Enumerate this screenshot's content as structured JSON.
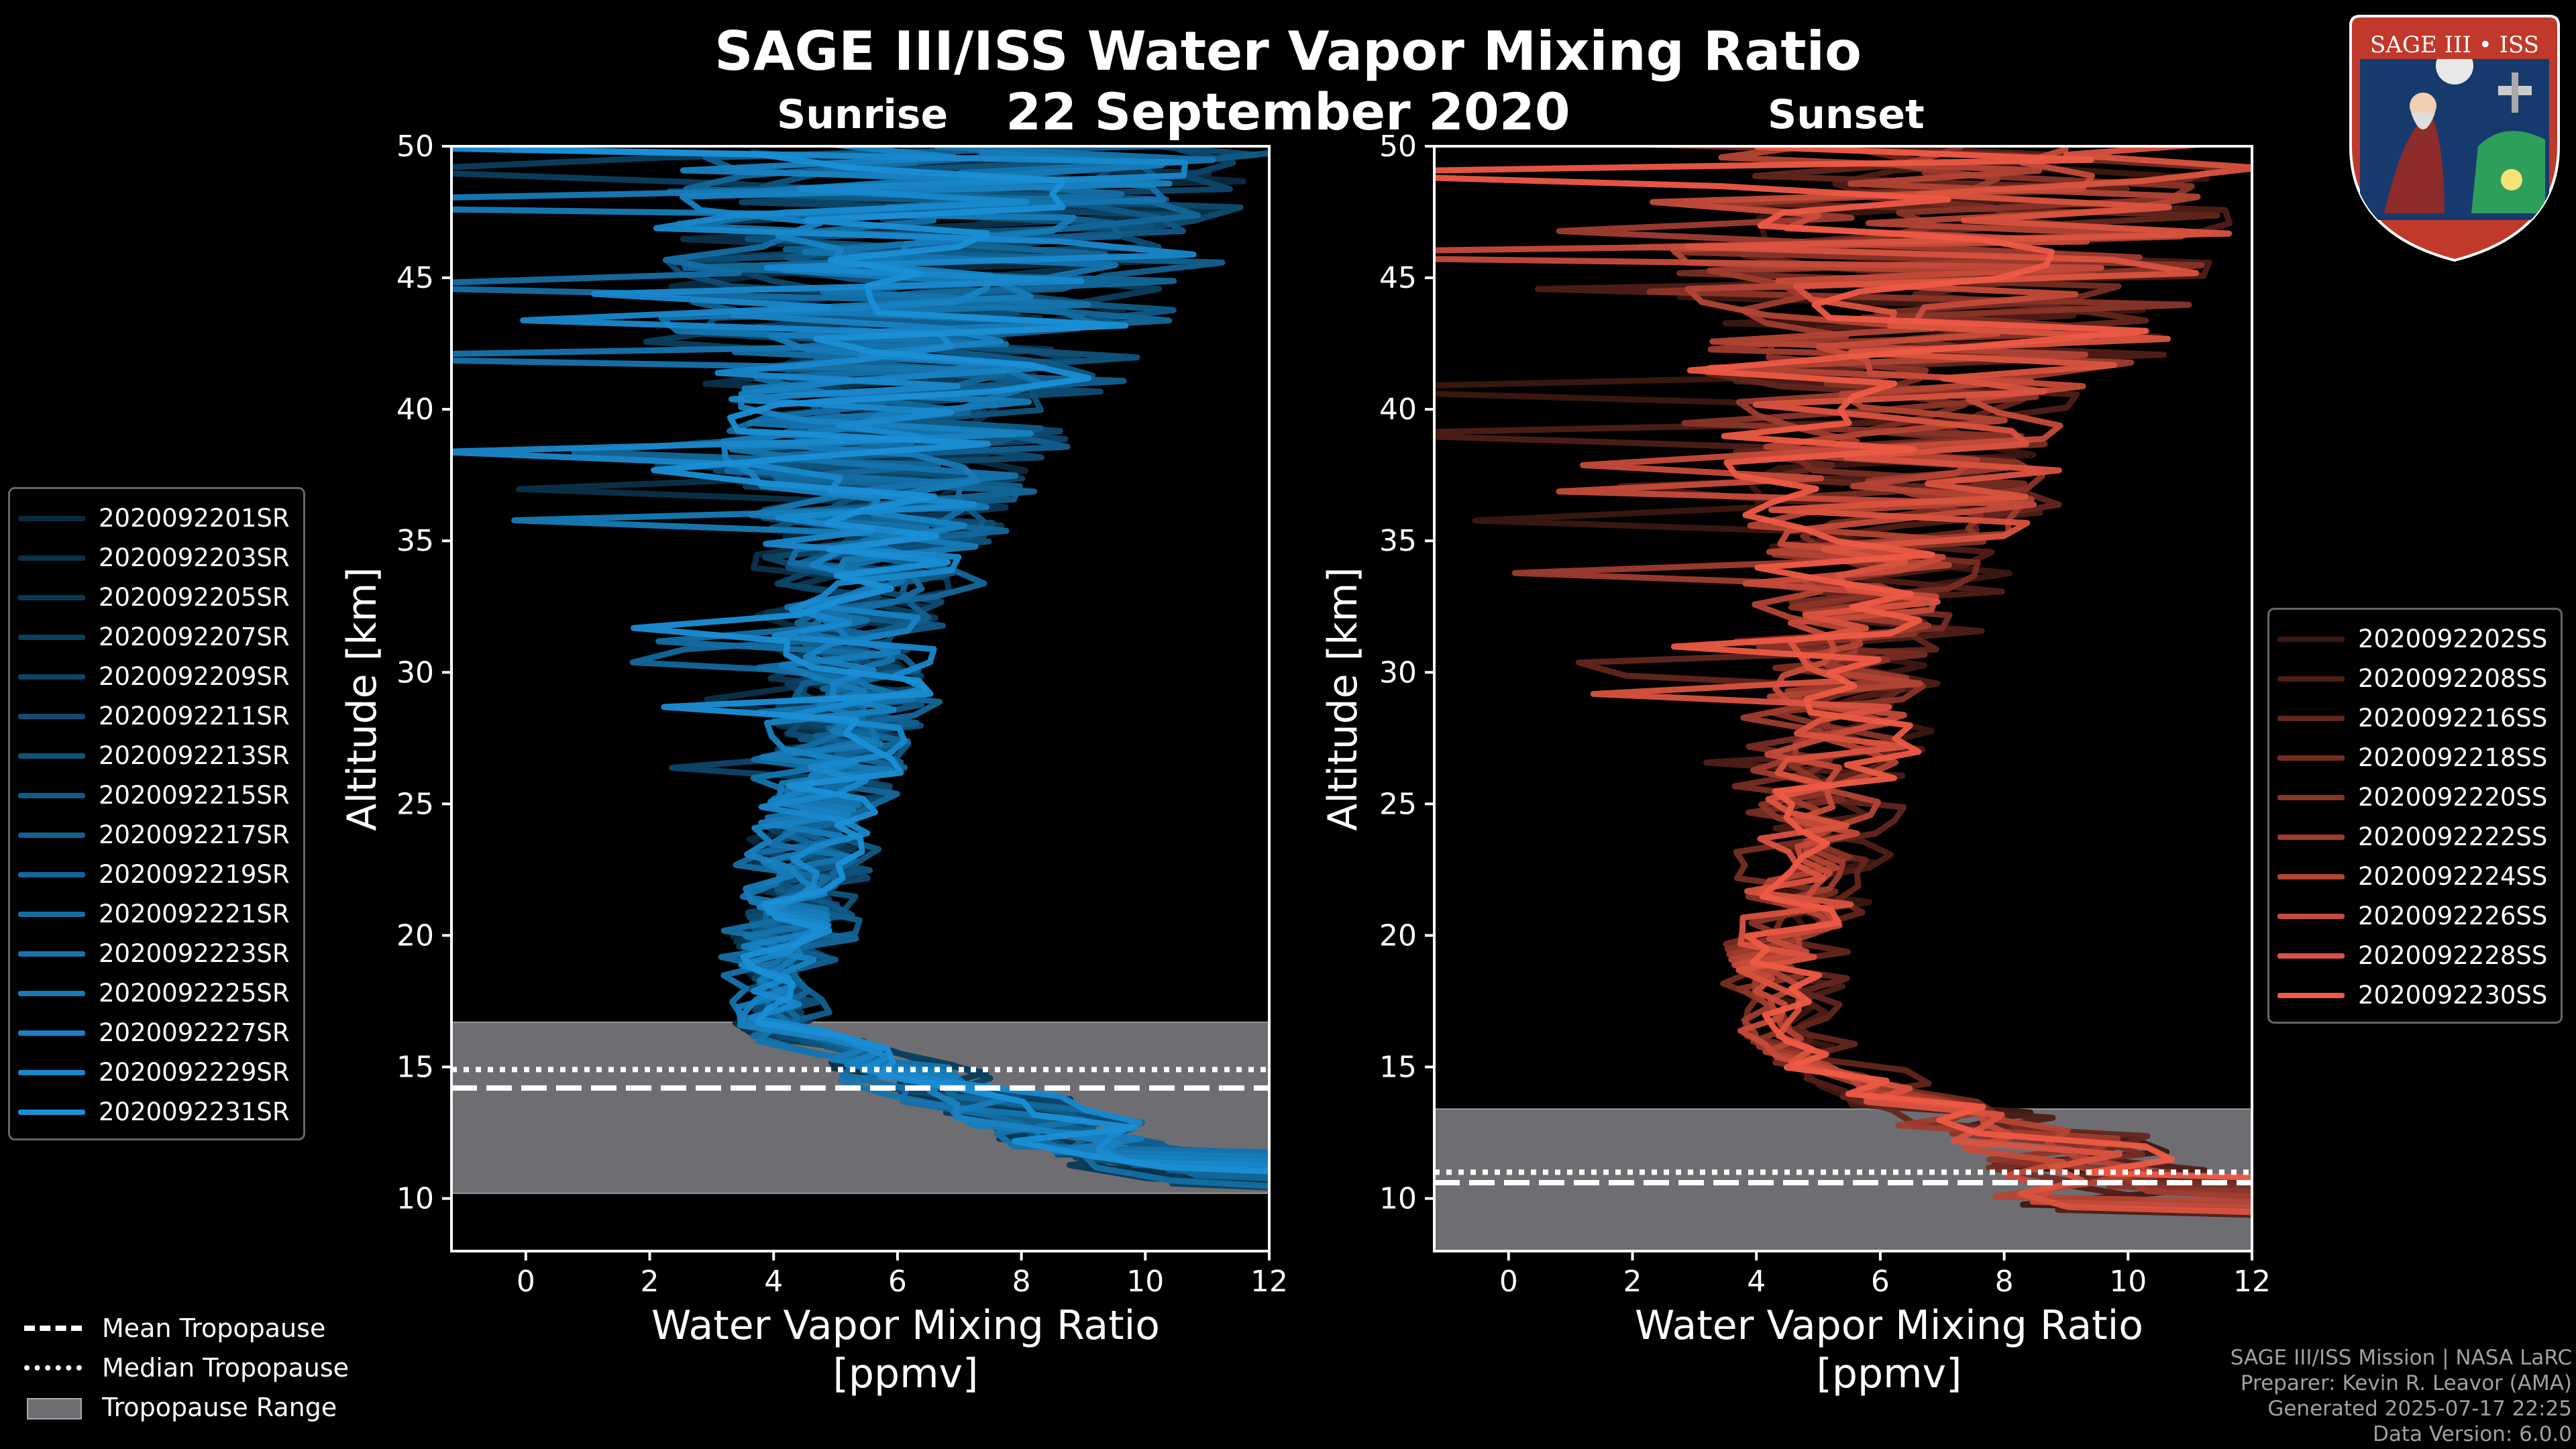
{
  "title_line1": "SAGE III/ISS Water Vapor Mixing Ratio",
  "title_line2": "22 September 2020",
  "sunrise_label": "Sunrise",
  "sunset_label": "Sunset",
  "logo_text": "SAGE III • ISS",
  "colors": {
    "sunrise": "#1a8fd6",
    "sunset": "#ee5a45",
    "tropopause_range": "#6e6e72"
  },
  "legend_tropopause": [
    {
      "label": "Mean Tropopause",
      "style": "dashed"
    },
    {
      "label": "Median Tropopause",
      "style": "dotted"
    },
    {
      "label": "Tropopause Range",
      "style": "box"
    }
  ],
  "credits": [
    "SAGE III/ISS Mission | NASA LaRC",
    "Preparer: Kevin R. Leavor (AMA)",
    "Generated 2025-07-17 22:25",
    "Data Version: 6.0.0"
  ],
  "chart_data": [
    {
      "type": "line",
      "panel": "Sunrise",
      "xlabel": "Water Vapor Mixing Ratio\n[ppmv]",
      "ylabel": "Altitude [km]",
      "xlim": [
        -1.2,
        12
      ],
      "ylim": [
        8,
        50
      ],
      "xticks": [
        0,
        2,
        4,
        6,
        8,
        10,
        12
      ],
      "yticks": [
        10,
        15,
        20,
        25,
        30,
        35,
        40,
        45,
        50
      ],
      "tropopause": {
        "mean": 14.2,
        "median": 14.9,
        "range": [
          10.2,
          16.7
        ]
      },
      "series": [
        {
          "name": "2020092201SR",
          "values": []
        },
        {
          "name": "2020092203SR",
          "values": []
        },
        {
          "name": "2020092205SR",
          "values": []
        },
        {
          "name": "2020092207SR",
          "values": []
        },
        {
          "name": "2020092209SR",
          "values": []
        },
        {
          "name": "2020092211SR",
          "values": []
        },
        {
          "name": "2020092213SR",
          "values": []
        },
        {
          "name": "2020092215SR",
          "values": []
        },
        {
          "name": "2020092217SR",
          "values": []
        },
        {
          "name": "2020092219SR",
          "values": []
        },
        {
          "name": "2020092221SR",
          "values": []
        },
        {
          "name": "2020092223SR",
          "values": []
        },
        {
          "name": "2020092225SR",
          "values": []
        },
        {
          "name": "2020092227SR",
          "values": []
        },
        {
          "name": "2020092229SR",
          "values": []
        },
        {
          "name": "2020092231SR",
          "values": []
        }
      ],
      "profile_shape": {
        "alt": [
          11,
          13,
          15,
          16.5,
          18,
          20,
          22,
          25,
          28,
          31,
          34,
          37,
          40,
          43,
          46,
          49
        ],
        "center": [
          10,
          8.5,
          6,
          4.2,
          4.0,
          4.2,
          4.5,
          4.9,
          5.2,
          5.4,
          5.6,
          5.8,
          6.0,
          6.3,
          6.6,
          7.0
        ],
        "spread": [
          1.0,
          1.5,
          1.2,
          0.6,
          0.6,
          0.8,
          0.9,
          1.0,
          1.2,
          1.4,
          1.8,
          2.3,
          3.0,
          3.8,
          4.5,
          5.0
        ]
      }
    },
    {
      "type": "line",
      "panel": "Sunset",
      "xlabel": "Water Vapor Mixing Ratio\n[ppmv]",
      "ylabel": "Altitude [km]",
      "xlim": [
        -1.2,
        12
      ],
      "ylim": [
        8,
        50
      ],
      "xticks": [
        0,
        2,
        4,
        6,
        8,
        10,
        12
      ],
      "yticks": [
        10,
        15,
        20,
        25,
        30,
        35,
        40,
        45,
        50
      ],
      "tropopause": {
        "mean": 10.6,
        "median": 11.0,
        "range": [
          8.0,
          13.4
        ]
      },
      "series": [
        {
          "name": "2020092202SS",
          "values": []
        },
        {
          "name": "2020092208SS",
          "values": []
        },
        {
          "name": "2020092216SS",
          "values": []
        },
        {
          "name": "2020092218SS",
          "values": []
        },
        {
          "name": "2020092220SS",
          "values": []
        },
        {
          "name": "2020092222SS",
          "values": []
        },
        {
          "name": "2020092224SS",
          "values": []
        },
        {
          "name": "2020092226SS",
          "values": []
        },
        {
          "name": "2020092228SS",
          "values": []
        },
        {
          "name": "2020092230SS",
          "values": []
        }
      ],
      "profile_shape": {
        "alt": [
          10,
          12,
          14,
          15.5,
          17,
          19,
          21,
          24,
          27,
          30,
          33,
          36,
          39,
          42,
          45,
          49
        ],
        "center": [
          9.5,
          9.0,
          6.0,
          4.6,
          4.4,
          4.4,
          4.7,
          5.0,
          5.3,
          5.5,
          5.8,
          6.1,
          6.4,
          6.7,
          7.0,
          7.3
        ],
        "spread": [
          1.5,
          2.0,
          1.4,
          0.7,
          0.6,
          0.8,
          0.9,
          1.0,
          1.3,
          1.6,
          2.0,
          2.5,
          3.2,
          4.0,
          4.6,
          5.0
        ]
      }
    }
  ]
}
